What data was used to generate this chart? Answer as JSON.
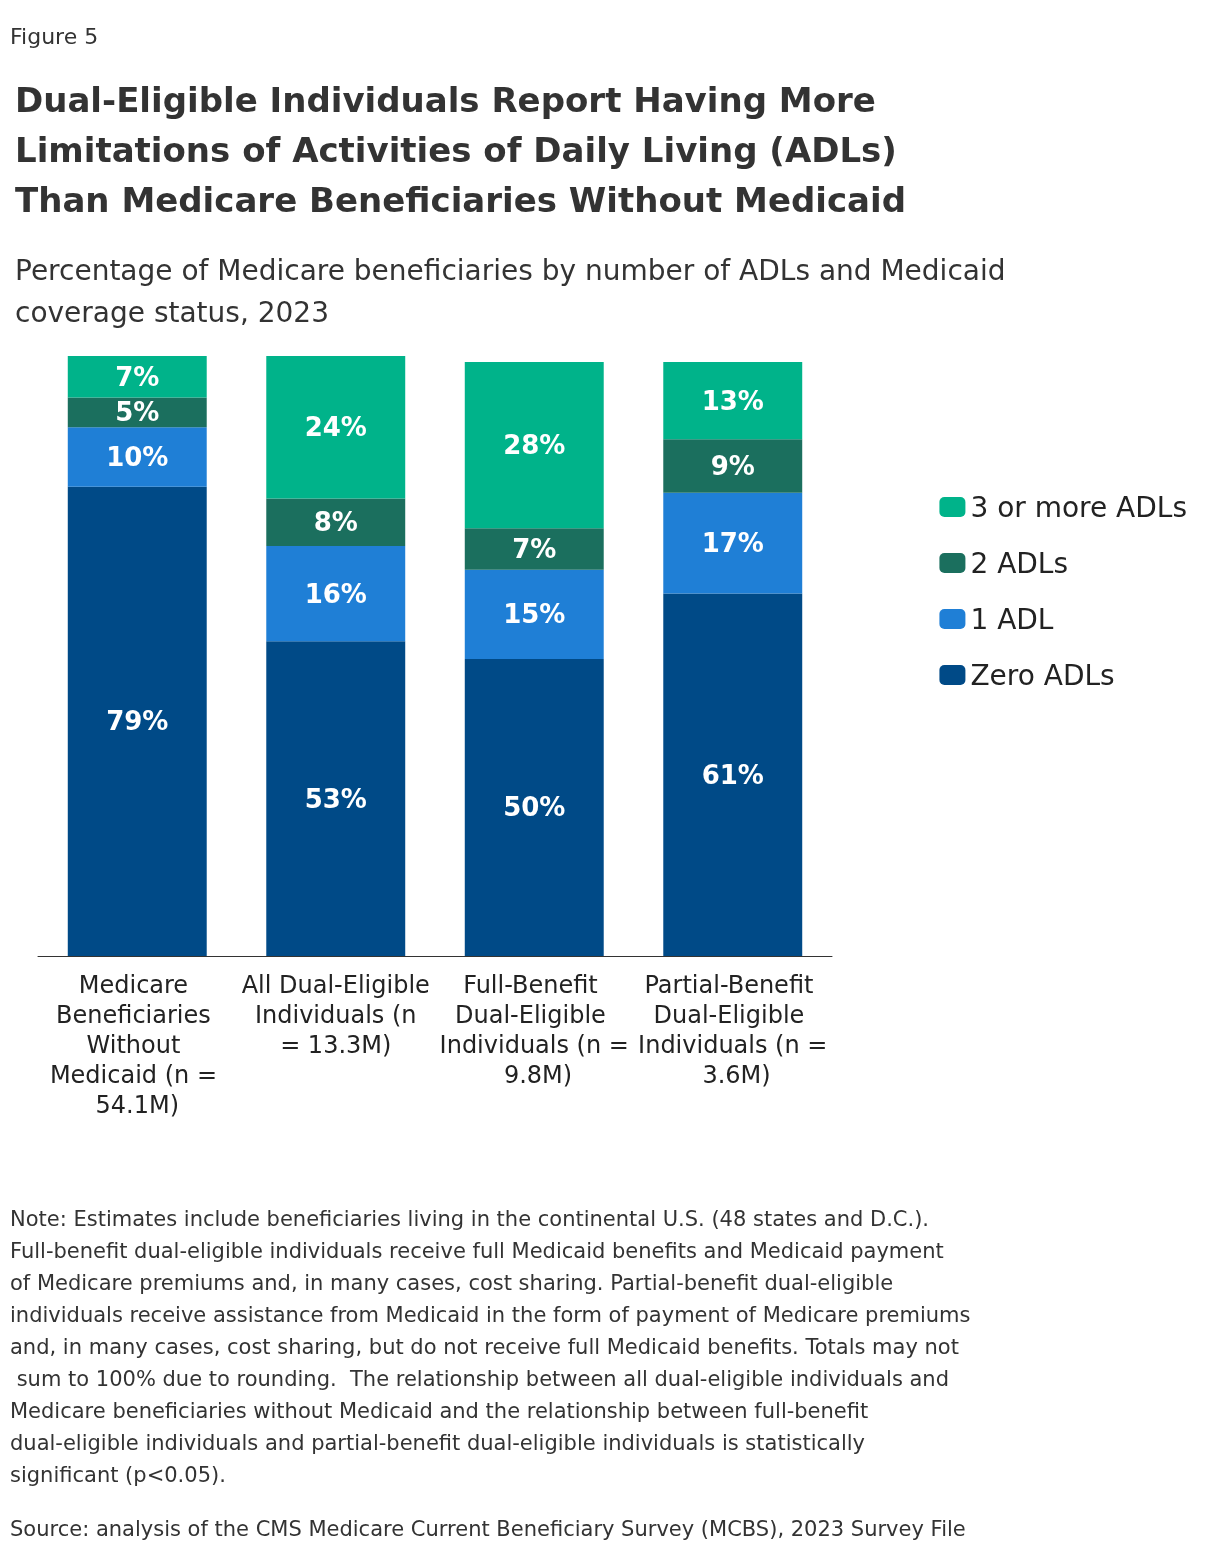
{
  "chart_data": {
    "type": "bar",
    "stacked": true,
    "tick_labels": "x",
    "legend": "right",
    "title": "Dual-Eligible Individuals Report Having More Limitations of Activities of Daily Living (ADLs) Than Medicare Beneficiaries Without Medicaid",
    "subtitle": "Percentage of Medicare beneficiaries by number of ADLs and Medicaid coverage status, 2023",
    "categories": [
      "Medicare Beneficiaries Without Medicaid (n = 54.1M)",
      "All Dual-Eligible Individuals (n = 13.3M)",
      "Full-Benefit Dual-Eligible Individuals (n = 9.8M)",
      "Partial-Benefit Dual-Eligible Individuals (n = 3.6M)"
    ],
    "series": [
      {
        "name": "Zero ADLs",
        "color": "#004a87",
        "values": [
          79,
          53,
          50,
          61
        ],
        "value_labels": [
          "79%",
          "53%",
          "50%",
          "61%"
        ]
      },
      {
        "name": "1 ADL",
        "color": "#1f7fd6",
        "values": [
          10,
          16,
          15,
          17
        ],
        "value_labels": [
          "10%",
          "16%",
          "15%",
          "17%"
        ]
      },
      {
        "name": "2 ADLs",
        "color": "#1b6f5e",
        "values": [
          5,
          8,
          7,
          9
        ],
        "value_labels": [
          "5%",
          "8%",
          "7%",
          "9%"
        ]
      },
      {
        "name": "3 or more ADLs",
        "color": "#00b38a",
        "values": [
          7,
          24,
          28,
          13
        ],
        "value_labels": [
          "7%",
          "24%",
          "28%",
          "13%"
        ]
      }
    ],
    "annotations": [
      "Figure 5",
      "Note: Estimates include beneficiaries living in the continental U.S. (48 states and D.C.). Full-benefit dual-eligible individuals receive full Medicaid benefits and Medicaid payment of Medicare premiums and, in many cases, cost sharing. Partial-benefit dual-eligible individuals receive assistance from Medicaid in the form of payment of Medicare premiums and, in many cases, cost sharing, but do not receive full Medicaid benefits. Totals may not sum to 100% due to rounding.  The relationship between all dual-eligible individuals and Medicare beneficiaries without Medicaid and the relationship between full-benefit dual-eligible individuals and partial-benefit dual-eligible individuals is statistically significant (p<0.05).",
      "Source: analysis of the CMS Medicare Current Beneficiary Survey (MCBS), 2023 Survey File"
    ]
  }
}
